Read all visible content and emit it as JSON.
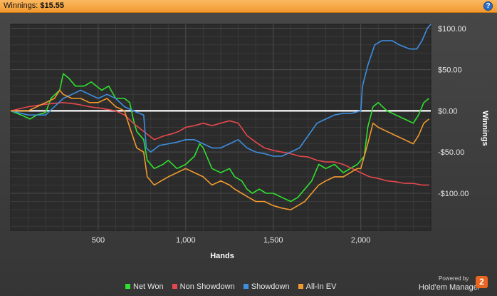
{
  "header": {
    "label": "Winnings:",
    "value": "$15.55",
    "help": "?"
  },
  "legend": [
    {
      "name": "Net Won",
      "color": "#2fe02f"
    },
    {
      "name": "Non Showdown",
      "color": "#e5484c"
    },
    {
      "name": "Showdown",
      "color": "#3d8fe0"
    },
    {
      "name": "All-In EV",
      "color": "#f09a2e"
    }
  ],
  "branding": {
    "top": "Powered by",
    "main": "Hold'em Manager",
    "badge": "2"
  },
  "chart_data": {
    "type": "line",
    "xlabel": "Hands",
    "ylabel": "Winnings",
    "xlim": [
      0,
      2400
    ],
    "ylim": [
      -145,
      105
    ],
    "x_ticks": [
      500,
      1000,
      1500,
      2000
    ],
    "x_tick_labels": [
      "500",
      "1,000",
      "1,500",
      "2,000"
    ],
    "y_ticks": [
      100,
      50,
      0,
      -50,
      -100
    ],
    "y_tick_labels": [
      "$100.00",
      "$50.00",
      "$0.00",
      "-$50.00",
      "-$100.00"
    ],
    "grid": true,
    "zero_line": true,
    "legend_position": "bottom",
    "series": [
      {
        "name": "Net Won",
        "color": "#2fe02f",
        "points": [
          [
            0,
            0
          ],
          [
            60,
            -5
          ],
          [
            110,
            -10
          ],
          [
            150,
            -5
          ],
          [
            200,
            -2
          ],
          [
            230,
            15
          ],
          [
            280,
            25
          ],
          [
            300,
            45
          ],
          [
            330,
            40
          ],
          [
            370,
            30
          ],
          [
            420,
            30
          ],
          [
            460,
            35
          ],
          [
            520,
            25
          ],
          [
            560,
            30
          ],
          [
            600,
            15
          ],
          [
            650,
            15
          ],
          [
            680,
            10
          ],
          [
            700,
            -10
          ],
          [
            720,
            -25
          ],
          [
            760,
            -35
          ],
          [
            780,
            -60
          ],
          [
            820,
            -70
          ],
          [
            870,
            -65
          ],
          [
            900,
            -60
          ],
          [
            950,
            -70
          ],
          [
            1000,
            -65
          ],
          [
            1050,
            -55
          ],
          [
            1080,
            -40
          ],
          [
            1100,
            -45
          ],
          [
            1120,
            -55
          ],
          [
            1150,
            -70
          ],
          [
            1200,
            -75
          ],
          [
            1250,
            -70
          ],
          [
            1280,
            -80
          ],
          [
            1320,
            -85
          ],
          [
            1350,
            -95
          ],
          [
            1380,
            -100
          ],
          [
            1420,
            -95
          ],
          [
            1460,
            -100
          ],
          [
            1500,
            -100
          ],
          [
            1550,
            -105
          ],
          [
            1600,
            -110
          ],
          [
            1640,
            -105
          ],
          [
            1680,
            -95
          ],
          [
            1720,
            -85
          ],
          [
            1760,
            -65
          ],
          [
            1800,
            -70
          ],
          [
            1850,
            -65
          ],
          [
            1900,
            -75
          ],
          [
            1940,
            -70
          ],
          [
            1980,
            -65
          ],
          [
            2020,
            -55
          ],
          [
            2040,
            -20
          ],
          [
            2070,
            5
          ],
          [
            2100,
            10
          ],
          [
            2150,
            0
          ],
          [
            2200,
            -5
          ],
          [
            2250,
            -10
          ],
          [
            2300,
            -15
          ],
          [
            2330,
            -5
          ],
          [
            2360,
            10
          ],
          [
            2390,
            15
          ]
        ]
      },
      {
        "name": "Non Showdown",
        "color": "#e5484c",
        "points": [
          [
            0,
            0
          ],
          [
            100,
            5
          ],
          [
            200,
            8
          ],
          [
            300,
            10
          ],
          [
            380,
            8
          ],
          [
            450,
            5
          ],
          [
            520,
            3
          ],
          [
            600,
            0
          ],
          [
            650,
            -5
          ],
          [
            700,
            -15
          ],
          [
            760,
            -25
          ],
          [
            820,
            -35
          ],
          [
            880,
            -30
          ],
          [
            920,
            -28
          ],
          [
            960,
            -25
          ],
          [
            1000,
            -20
          ],
          [
            1050,
            -18
          ],
          [
            1100,
            -15
          ],
          [
            1150,
            -18
          ],
          [
            1200,
            -15
          ],
          [
            1250,
            -12
          ],
          [
            1300,
            -15
          ],
          [
            1350,
            -30
          ],
          [
            1400,
            -38
          ],
          [
            1450,
            -45
          ],
          [
            1500,
            -48
          ],
          [
            1550,
            -50
          ],
          [
            1600,
            -52
          ],
          [
            1650,
            -55
          ],
          [
            1700,
            -56
          ],
          [
            1750,
            -60
          ],
          [
            1800,
            -62
          ],
          [
            1850,
            -62
          ],
          [
            1900,
            -65
          ],
          [
            1950,
            -70
          ],
          [
            2000,
            -75
          ],
          [
            2050,
            -80
          ],
          [
            2100,
            -82
          ],
          [
            2150,
            -85
          ],
          [
            2200,
            -86
          ],
          [
            2250,
            -88
          ],
          [
            2300,
            -88
          ],
          [
            2350,
            -90
          ],
          [
            2390,
            -90
          ]
        ]
      },
      {
        "name": "Showdown",
        "color": "#3d8fe0",
        "points": [
          [
            0,
            0
          ],
          [
            100,
            -5
          ],
          [
            200,
            -5
          ],
          [
            250,
            5
          ],
          [
            300,
            15
          ],
          [
            350,
            20
          ],
          [
            400,
            25
          ],
          [
            450,
            20
          ],
          [
            500,
            15
          ],
          [
            550,
            20
          ],
          [
            600,
            15
          ],
          [
            650,
            5
          ],
          [
            700,
            0
          ],
          [
            760,
            -5
          ],
          [
            775,
            -45
          ],
          [
            800,
            -50
          ],
          [
            850,
            -42
          ],
          [
            900,
            -40
          ],
          [
            950,
            -38
          ],
          [
            1000,
            -35
          ],
          [
            1050,
            -35
          ],
          [
            1100,
            -40
          ],
          [
            1150,
            -45
          ],
          [
            1200,
            -45
          ],
          [
            1250,
            -40
          ],
          [
            1300,
            -35
          ],
          [
            1350,
            -45
          ],
          [
            1400,
            -50
          ],
          [
            1450,
            -52
          ],
          [
            1500,
            -55
          ],
          [
            1550,
            -55
          ],
          [
            1600,
            -50
          ],
          [
            1650,
            -45
          ],
          [
            1700,
            -30
          ],
          [
            1750,
            -15
          ],
          [
            1800,
            -10
          ],
          [
            1850,
            -5
          ],
          [
            1900,
            -3
          ],
          [
            1950,
            -3
          ],
          [
            2000,
            0
          ],
          [
            2010,
            30
          ],
          [
            2040,
            55
          ],
          [
            2080,
            80
          ],
          [
            2120,
            85
          ],
          [
            2180,
            85
          ],
          [
            2220,
            80
          ],
          [
            2280,
            75
          ],
          [
            2320,
            75
          ],
          [
            2350,
            85
          ],
          [
            2380,
            100
          ],
          [
            2400,
            105
          ]
        ]
      },
      {
        "name": "All-In EV",
        "color": "#f09a2e",
        "points": [
          [
            0,
            0
          ],
          [
            100,
            0
          ],
          [
            200,
            10
          ],
          [
            250,
            15
          ],
          [
            280,
            25
          ],
          [
            300,
            20
          ],
          [
            350,
            15
          ],
          [
            400,
            15
          ],
          [
            450,
            10
          ],
          [
            500,
            10
          ],
          [
            550,
            15
          ],
          [
            600,
            5
          ],
          [
            650,
            0
          ],
          [
            680,
            -20
          ],
          [
            720,
            -45
          ],
          [
            760,
            -50
          ],
          [
            780,
            -80
          ],
          [
            820,
            -90
          ],
          [
            860,
            -85
          ],
          [
            900,
            -80
          ],
          [
            950,
            -75
          ],
          [
            1000,
            -70
          ],
          [
            1050,
            -75
          ],
          [
            1100,
            -80
          ],
          [
            1150,
            -90
          ],
          [
            1200,
            -85
          ],
          [
            1250,
            -90
          ],
          [
            1280,
            -95
          ],
          [
            1320,
            -100
          ],
          [
            1360,
            -105
          ],
          [
            1400,
            -110
          ],
          [
            1450,
            -110
          ],
          [
            1500,
            -115
          ],
          [
            1550,
            -118
          ],
          [
            1600,
            -120
          ],
          [
            1640,
            -115
          ],
          [
            1680,
            -110
          ],
          [
            1720,
            -100
          ],
          [
            1760,
            -90
          ],
          [
            1800,
            -85
          ],
          [
            1850,
            -80
          ],
          [
            1900,
            -80
          ],
          [
            1940,
            -75
          ],
          [
            1980,
            -70
          ],
          [
            2000,
            -70
          ],
          [
            2040,
            -40
          ],
          [
            2070,
            -15
          ],
          [
            2100,
            -20
          ],
          [
            2150,
            -25
          ],
          [
            2200,
            -30
          ],
          [
            2250,
            -35
          ],
          [
            2300,
            -40
          ],
          [
            2330,
            -30
          ],
          [
            2360,
            -15
          ],
          [
            2390,
            -10
          ]
        ]
      }
    ]
  }
}
